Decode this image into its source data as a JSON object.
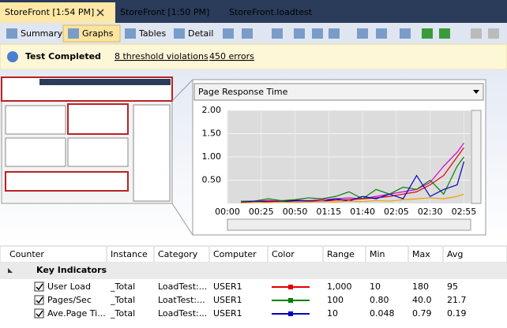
{
  "tabs": [
    "StoreFront [1:54 PM]",
    "StoreFront [1:50 PM]",
    "StoreFront.loadtest"
  ],
  "toolbar": [
    "Summary",
    "Graphs",
    "Tables",
    "Detail"
  ],
  "status": {
    "text": "Test Completed",
    "violations": "8 threshold violations",
    "errors": "450 errors"
  },
  "graph": {
    "title": "Page Response Time",
    "x": [
      10,
      20,
      30,
      40,
      50,
      60,
      70,
      80,
      90,
      100,
      110,
      120,
      130,
      140,
      150,
      160,
      170,
      175
    ],
    "xlim": [
      0,
      180
    ],
    "xticks": [
      {
        "value": 0,
        "label": "00:00"
      },
      {
        "value": 25,
        "label": "00:25"
      },
      {
        "value": 50,
        "label": "00:50"
      },
      {
        "value": 75,
        "label": "01:15"
      },
      {
        "value": 100,
        "label": "01:40"
      },
      {
        "value": 125,
        "label": "02:05"
      },
      {
        "value": 150,
        "label": "02:30"
      },
      {
        "value": 175,
        "label": "02:55"
      }
    ],
    "ylim": [
      0,
      2
    ],
    "yticks": [
      {
        "value": 0.5,
        "label": "0.50"
      },
      {
        "value": 1,
        "label": "1.00"
      },
      {
        "value": 1.5,
        "label": "1.50"
      },
      {
        "value": 2,
        "label": "2.00"
      }
    ],
    "grid": true,
    "series": [
      {
        "color": "#d000d0",
        "values": [
          0.05,
          0.05,
          0.06,
          0.05,
          0.07,
          0.06,
          0.08,
          0.1,
          0.12,
          0.1,
          0.15,
          0.2,
          0.25,
          0.3,
          0.45,
          0.8,
          1.1,
          1.3
        ]
      },
      {
        "color": "#e00000",
        "values": [
          0.03,
          0.04,
          0.05,
          0.04,
          0.05,
          0.06,
          0.05,
          0.07,
          0.08,
          0.1,
          0.12,
          0.15,
          0.2,
          0.25,
          0.4,
          0.6,
          1.0,
          1.2
        ]
      },
      {
        "color": "#008000",
        "values": [
          0.04,
          0.05,
          0.1,
          0.06,
          0.08,
          0.12,
          0.1,
          0.15,
          0.25,
          0.1,
          0.3,
          0.2,
          0.35,
          0.3,
          0.5,
          0.2,
          0.8,
          1.0
        ]
      },
      {
        "color": "#0000c0",
        "values": [
          0.02,
          0.05,
          0.03,
          0.04,
          0.06,
          0.05,
          0.04,
          0.1,
          0.05,
          0.15,
          0.1,
          0.2,
          0.1,
          0.6,
          0.15,
          0.3,
          0.4,
          0.9
        ]
      },
      {
        "color": "#f0a000",
        "values": [
          0.01,
          0.02,
          0.02,
          0.03,
          0.02,
          0.03,
          0.04,
          0.03,
          0.05,
          0.04,
          0.06,
          0.05,
          0.08,
          0.1,
          0.12,
          0.1,
          0.15,
          0.2
        ]
      }
    ]
  },
  "table": {
    "columns": [
      "Counter",
      "Instance",
      "Category",
      "Computer",
      "Color",
      "Range",
      "Min",
      "Max",
      "Avg"
    ],
    "group": "Key Indicators",
    "rows": [
      [
        "User Load",
        "_Total",
        "LoadTest:...",
        "USER1",
        "1,000",
        "10",
        "180",
        "95"
      ],
      [
        "Pages/Sec",
        "_Total",
        "LoatTest:...",
        "USER1",
        "100",
        "0.80",
        "40.0",
        "21.7"
      ],
      [
        "Ave.Page Ti...",
        "_Total",
        "LoadTest:...",
        "USER1",
        "10",
        "0.048",
        "0.79",
        "0.19"
      ]
    ],
    "row_colors": [
      "#e00000",
      "#008000",
      "#0000c0"
    ]
  }
}
